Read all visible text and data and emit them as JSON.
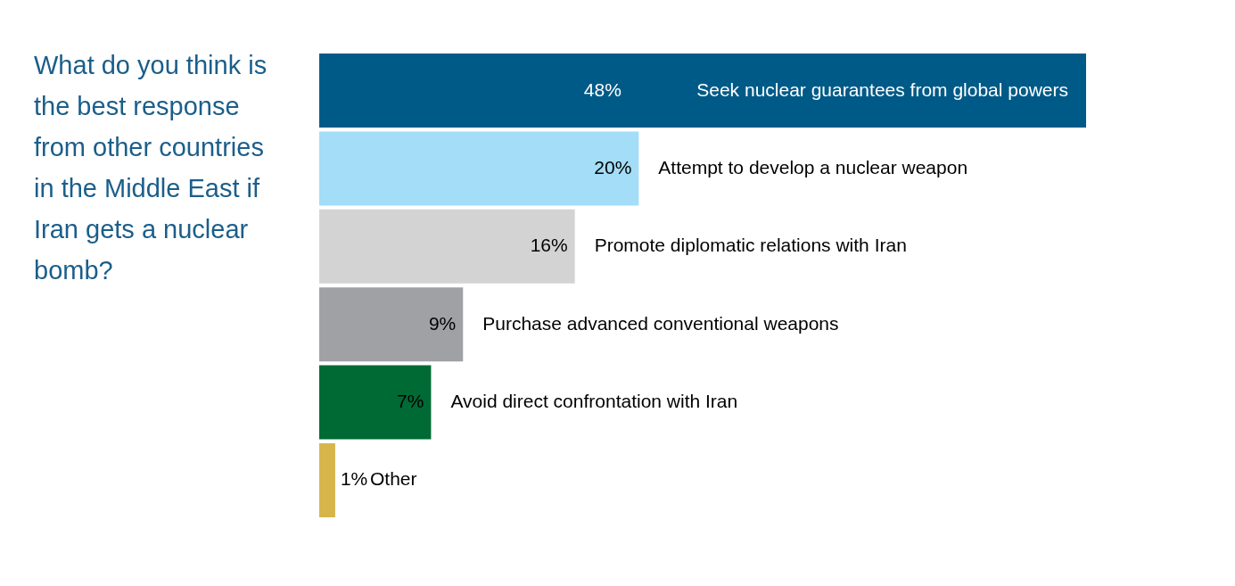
{
  "chart_data": {
    "type": "bar",
    "orientation": "horizontal",
    "title": "What do you think is the best response from other countries in the Middle East if Iran gets a nuclear bomb?",
    "categories": [
      "Seek nuclear guarantees from global powers",
      "Attempt to develop a nuclear weapon",
      "Promote diplomatic relations with Iran",
      "Purchase advanced conventional weapons",
      "Avoid direct confrontation with Iran",
      "Other"
    ],
    "values": [
      48,
      20,
      16,
      9,
      7,
      1
    ],
    "colors": [
      "#005a87",
      "#a3ddf7",
      "#d3d3d3",
      "#a0a1a5",
      "#006a35",
      "#d6b64a"
    ],
    "value_labels": [
      "48%",
      "20%",
      "16%",
      "9%",
      "7%",
      "1%"
    ]
  }
}
